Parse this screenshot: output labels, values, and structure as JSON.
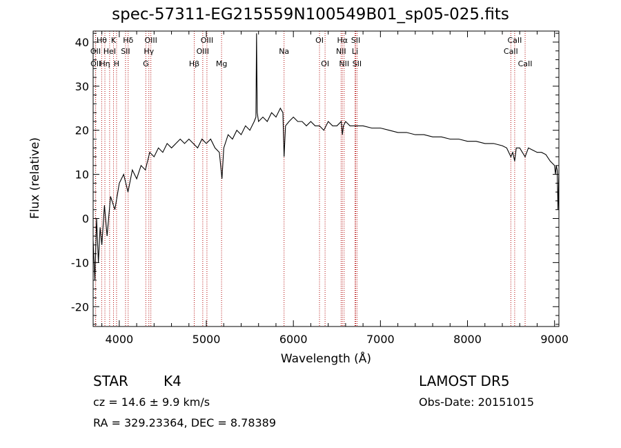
{
  "chart_data": {
    "type": "line",
    "title": "spec-57311-EG215559N100549B01_sp05-025.fits",
    "xlabel": "Wavelength (Å)",
    "ylabel": "Flux (relative)",
    "xlim": [
      3700,
      9050
    ],
    "ylim": [
      -24.5,
      42.5
    ],
    "xticks": [
      4000,
      5000,
      6000,
      7000,
      8000,
      9000
    ],
    "yticks": [
      -20,
      -10,
      0,
      10,
      20,
      30,
      40
    ],
    "grid": false,
    "series": [
      {
        "x": [
          3700,
          3720,
          3740,
          3760,
          3780,
          3800,
          3830,
          3860,
          3900,
          3950,
          4000,
          4050,
          4100,
          4150,
          4200,
          4250,
          4300,
          4350,
          4400,
          4450,
          4500,
          4550,
          4600,
          4650,
          4700,
          4750,
          4800,
          4850,
          4900,
          4950,
          5000,
          5050,
          5100,
          5150,
          5180,
          5200,
          5250,
          5300,
          5350,
          5400,
          5450,
          5500,
          5550,
          5570,
          5577,
          5585,
          5600,
          5650,
          5700,
          5750,
          5800,
          5850,
          5880,
          5893,
          5910,
          5950,
          6000,
          6050,
          6100,
          6150,
          6200,
          6250,
          6300,
          6350,
          6400,
          6450,
          6500,
          6550,
          6563,
          6575,
          6600,
          6650,
          6700,
          6750,
          6800,
          6900,
          7000,
          7100,
          7200,
          7300,
          7400,
          7500,
          7600,
          7700,
          7800,
          7900,
          8000,
          8100,
          8200,
          8300,
          8400,
          8450,
          8498,
          8520,
          8542,
          8560,
          8600,
          8662,
          8700,
          8750,
          8800,
          8850,
          8900,
          8950,
          9000,
          9010,
          9020,
          9030,
          9040,
          9050
        ],
        "y": [
          -5,
          -14,
          0,
          -10,
          -2,
          -6,
          3,
          -4,
          5,
          2,
          8,
          10,
          6,
          11,
          9,
          12,
          11,
          15,
          14,
          16,
          15,
          17,
          16,
          17,
          18,
          17,
          18,
          17,
          16,
          18,
          17,
          18,
          16,
          15,
          9,
          16,
          19,
          18,
          20,
          19,
          21,
          20,
          22,
          23,
          42,
          24,
          22,
          23,
          22,
          24,
          23,
          25,
          24,
          14,
          21,
          22,
          23,
          22,
          22,
          21,
          22,
          21,
          21,
          20,
          22,
          21,
          21,
          22,
          19,
          21,
          22,
          21,
          21,
          21,
          21,
          20.5,
          20.5,
          20,
          19.5,
          19.5,
          19,
          19,
          18.5,
          18.5,
          18,
          18,
          17.5,
          17.5,
          17,
          17,
          16.5,
          16,
          14,
          15,
          13,
          16,
          16,
          14,
          16,
          15.5,
          15,
          15,
          14.5,
          13,
          12,
          10,
          12,
          11,
          2,
          11
        ]
      }
    ],
    "annotations": {
      "lines": [
        {
          "name": "Hθ",
          "wavelength": 3798,
          "row": 1
        },
        {
          "name": "OII",
          "wavelength": 3727,
          "row": 2
        },
        {
          "name": "OII",
          "wavelength": 3729,
          "row": 3
        },
        {
          "name": "Hη",
          "wavelength": 3835,
          "row": 3
        },
        {
          "name": "K",
          "wavelength": 3934,
          "row": 1
        },
        {
          "name": "HeI",
          "wavelength": 3889,
          "row": 2
        },
        {
          "name": "H",
          "wavelength": 3969,
          "row": 3
        },
        {
          "name": "Hδ",
          "wavelength": 4102,
          "row": 1
        },
        {
          "name": "SII",
          "wavelength": 4072,
          "row": 2
        },
        {
          "name": "OIII",
          "wavelength": 4363,
          "row": 1
        },
        {
          "name": "Hγ",
          "wavelength": 4340,
          "row": 2
        },
        {
          "name": "G",
          "wavelength": 4305,
          "row": 3
        },
        {
          "name": "Hβ",
          "wavelength": 4861,
          "row": 3
        },
        {
          "name": "OIII",
          "wavelength": 5007,
          "row": 1
        },
        {
          "name": "OIII",
          "wavelength": 4959,
          "row": 2
        },
        {
          "name": "Mg",
          "wavelength": 5175,
          "row": 3
        },
        {
          "name": "Na",
          "wavelength": 5893,
          "row": 2
        },
        {
          "name": "OI",
          "wavelength": 6300,
          "row": 1
        },
        {
          "name": "OI",
          "wavelength": 6364,
          "row": 3
        },
        {
          "name": "Hα",
          "wavelength": 6563,
          "row": 1
        },
        {
          "name": "NII",
          "wavelength": 6548,
          "row": 2
        },
        {
          "name": "NII",
          "wavelength": 6583,
          "row": 3
        },
        {
          "name": "SII",
          "wavelength": 6716,
          "row": 1
        },
        {
          "name": "Li",
          "wavelength": 6708,
          "row": 2
        },
        {
          "name": "SII",
          "wavelength": 6731,
          "row": 3
        },
        {
          "name": "CaII",
          "wavelength": 8542,
          "row": 1
        },
        {
          "name": "CaII",
          "wavelength": 8498,
          "row": 2
        },
        {
          "name": "CaII",
          "wavelength": 8662,
          "row": 3
        }
      ]
    }
  },
  "info": {
    "class": "STAR",
    "subclass": "K4",
    "survey": "LAMOST DR5",
    "cz": "cz = 14.6 ± 9.9 km/s",
    "obs_date": "Obs-Date: 20151015",
    "radec": "RA = 329.23364, DEC =   8.78389"
  },
  "colors": {
    "axis": "#000000",
    "spectrum": "#000000",
    "line_marker": "#b00000"
  }
}
